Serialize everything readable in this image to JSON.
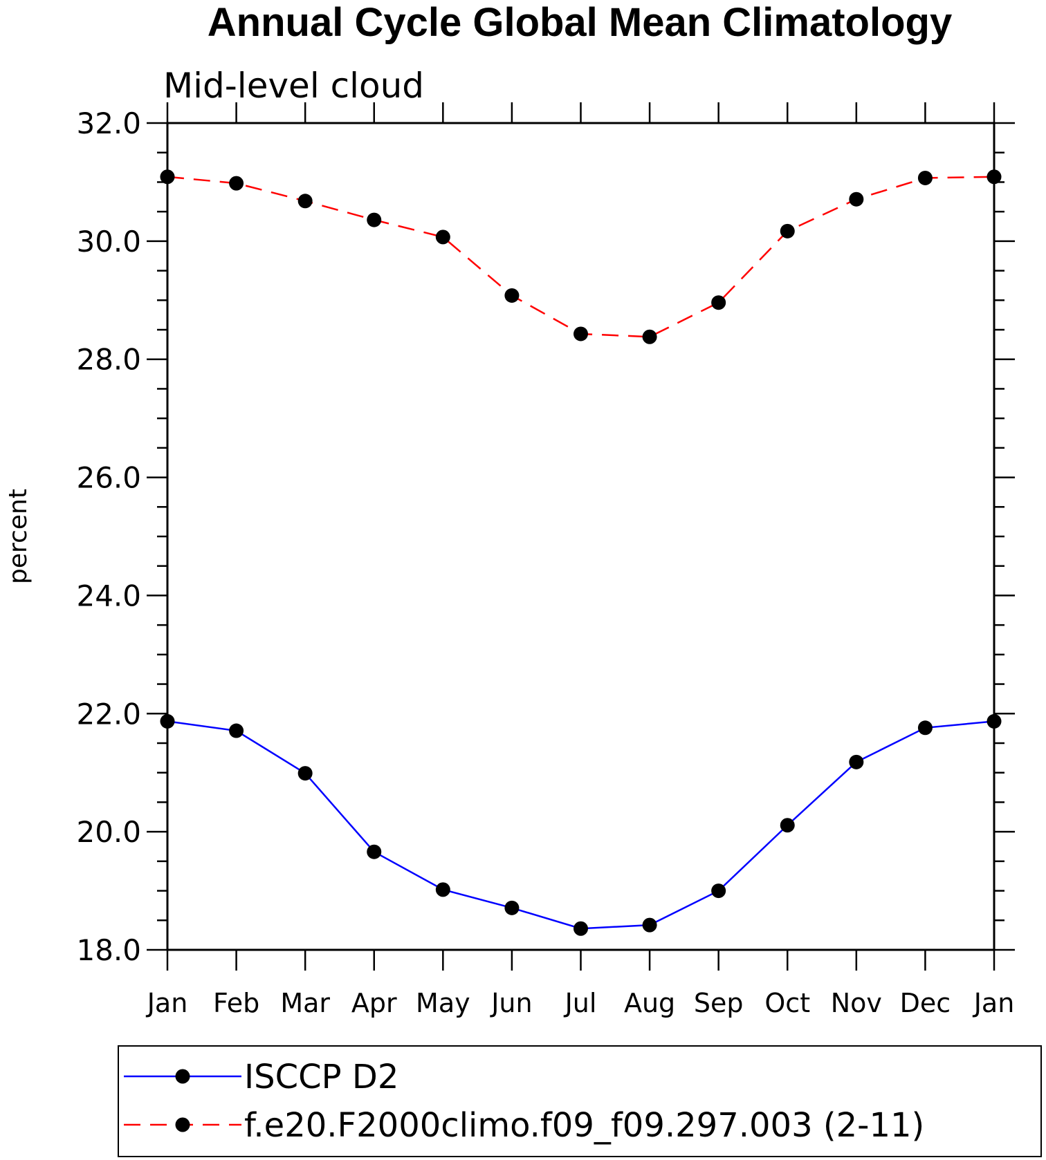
{
  "chart_data": {
    "type": "line",
    "title": "Annual Cycle Global Mean Climatology",
    "subtitle": "Mid-level cloud",
    "ylabel": "percent",
    "xlabel": "",
    "categories": [
      "Jan",
      "Feb",
      "Mar",
      "Apr",
      "May",
      "Jun",
      "Jul",
      "Aug",
      "Sep",
      "Oct",
      "Nov",
      "Dec",
      "Jan"
    ],
    "ylim": [
      18.0,
      32.0
    ],
    "yticks": [
      "18.0",
      "20.0",
      "22.0",
      "24.0",
      "26.0",
      "28.0",
      "30.0",
      "32.0"
    ],
    "yminor_step": 0.5,
    "grid": false,
    "legend_position": "bottom",
    "series": [
      {
        "name": "ISCCP D2",
        "color": "#0000ff",
        "dash": "solid",
        "marker": "filled-circle",
        "values": [
          21.87,
          21.71,
          20.99,
          19.66,
          19.02,
          18.71,
          18.36,
          18.42,
          19.0,
          20.11,
          21.18,
          21.76,
          21.87
        ]
      },
      {
        "name": "f.e20.F2000climo.f09_f09.297.003 (2-11)",
        "color": "#ff0000",
        "dash": "dashed",
        "marker": "filled-circle",
        "values": [
          31.09,
          30.98,
          30.68,
          30.36,
          30.07,
          29.08,
          28.43,
          28.38,
          28.96,
          30.17,
          30.71,
          31.07,
          31.09
        ]
      }
    ]
  }
}
